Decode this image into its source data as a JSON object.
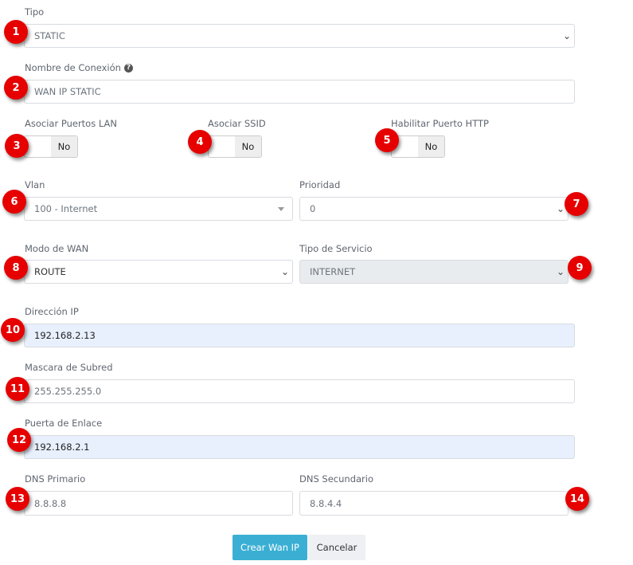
{
  "tipo": {
    "label": "Tipo",
    "value": "STATIC"
  },
  "nombre": {
    "label": "Nombre de Conexión",
    "value": "WAN IP STATIC",
    "help_icon": "question-circle-icon"
  },
  "toggles": [
    {
      "label": "Asociar Puertos LAN",
      "value": "No"
    },
    {
      "label": "Asociar SSID",
      "value": "No"
    },
    {
      "label": "Habilitar Puerto HTTP",
      "value": "No"
    }
  ],
  "vlan": {
    "label": "Vlan",
    "value": "100 - Internet"
  },
  "prioridad": {
    "label": "Prioridad",
    "value": "0"
  },
  "modo": {
    "label": "Modo de WAN",
    "value": "ROUTE"
  },
  "servicio": {
    "label": "Tipo de Servicio",
    "value": "INTERNET"
  },
  "ip": {
    "label": "Dirección IP",
    "value": "192.168.2.13"
  },
  "mascara": {
    "label": "Mascara de Subred",
    "value": "255.255.255.0"
  },
  "puerta": {
    "label": "Puerta de Enlace",
    "value": "192.168.2.1"
  },
  "dns1": {
    "label": "DNS Primario",
    "value": "8.8.8.8"
  },
  "dns2": {
    "label": "DNS Secundario",
    "value": "8.8.4.4"
  },
  "buttons": {
    "create": "Crear Wan IP",
    "cancel": "Cancelar"
  },
  "badges": [
    "1",
    "2",
    "3",
    "4",
    "5",
    "6",
    "7",
    "8",
    "9",
    "10",
    "11",
    "12",
    "13",
    "14"
  ],
  "colors": {
    "badge": "#e60000",
    "primary": "#3bafd3",
    "autofill": "#e8f0fe"
  }
}
